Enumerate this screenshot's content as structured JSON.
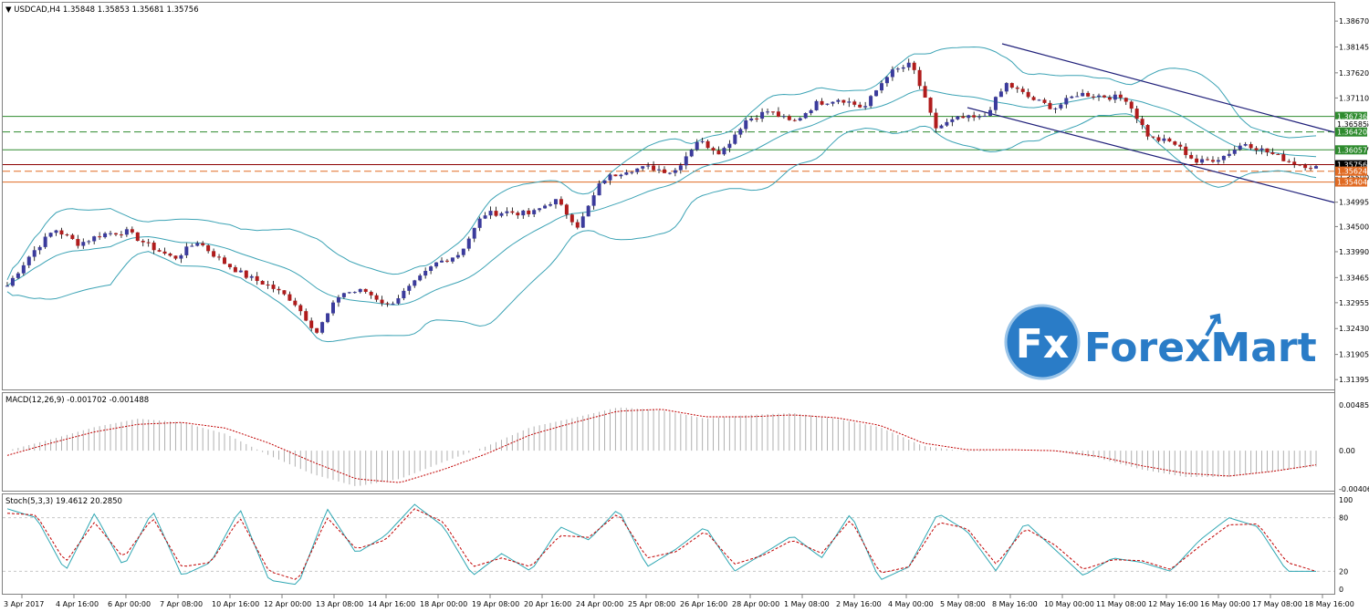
{
  "colors": {
    "up": "#3b3b9c",
    "down": "#b01c1c",
    "bands": "#3ca3b5",
    "channel": "#20207a",
    "level_green": "#2e8b2e",
    "level_orange": "#e06a22",
    "level_price": "#8c0000",
    "macd_signal": "#c00000",
    "stoch_k": "#2fa7b3",
    "stoch_d": "#c00000",
    "logo_blue": "#2a7cc7"
  },
  "watermark": {
    "logo_text": "Fx",
    "brand": "ForexMart"
  },
  "chart_data": [
    {
      "type": "candlestick",
      "title": "USDCAD,H4  1.35848 1.35853 1.35681 1.35756",
      "symbol": "USDCAD",
      "timeframe": "H4",
      "ohlc_last": [
        1.35848,
        1.35853,
        1.35681,
        1.35756
      ],
      "ylim": [
        1.3125,
        1.3895
      ],
      "y_ticks": [
        "1.38670",
        "1.38145",
        "1.37620",
        "1.37110",
        "1.36585",
        "1.36057",
        "1.35500",
        "1.34995",
        "1.34500",
        "1.33990",
        "1.33465",
        "1.32955",
        "1.32430",
        "1.31905",
        "1.31395"
      ],
      "x_ticks": [
        "3 Apr 2017",
        "4 Apr 16:00",
        "6 Apr 00:00",
        "7 Apr 08:00",
        "10 Apr 16:00",
        "12 Apr 00:00",
        "13 Apr 08:00",
        "14 Apr 16:00",
        "18 Apr 00:00",
        "19 Apr 08:00",
        "20 Apr 16:00",
        "24 Apr 00:00",
        "25 Apr 08:00",
        "26 Apr 16:00",
        "28 Apr 00:00",
        "1 May 08:00",
        "2 May 16:00",
        "4 May 00:00",
        "5 May 08:00",
        "8 May 16:00",
        "10 May 00:00",
        "11 May 08:00",
        "12 May 16:00",
        "16 May 00:00",
        "17 May 08:00",
        "18 May 16:00"
      ],
      "price_path": [
        1.333,
        1.3395,
        1.3445,
        1.3415,
        1.3435,
        1.344,
        1.341,
        1.3385,
        1.342,
        1.338,
        1.335,
        1.333,
        1.33,
        1.3235,
        1.3315,
        1.332,
        1.329,
        1.333,
        1.3375,
        1.3395,
        1.3475,
        1.348,
        1.3475,
        1.3505,
        1.345,
        1.3545,
        1.3565,
        1.357,
        1.356,
        1.3625,
        1.36,
        1.3665,
        1.3685,
        1.366,
        1.37,
        1.371,
        1.369,
        1.376,
        1.378,
        1.365,
        1.367,
        1.367,
        1.374,
        1.371,
        1.369,
        1.372,
        1.3715,
        1.371,
        1.363,
        1.362,
        1.358,
        1.359,
        1.362,
        1.36,
        1.358,
        1.357
      ],
      "levels": [
        {
          "label": "1.36736",
          "value": 1.36736,
          "style": "solid",
          "color": "green"
        },
        {
          "label": "1.36585",
          "value": 1.36585,
          "style": "none",
          "color": "price"
        },
        {
          "label": "1.36420",
          "value": 1.3642,
          "style": "dashed",
          "color": "green"
        },
        {
          "label": "1.36057",
          "value": 1.36057,
          "style": "solid",
          "color": "green"
        },
        {
          "label": "1.35756",
          "value": 1.35756,
          "style": "solid",
          "color": "price"
        },
        {
          "label": "1.35624",
          "value": 1.35624,
          "style": "dashed",
          "color": "orange"
        },
        {
          "label": "1.35404",
          "value": 1.35404,
          "style": "solid",
          "color": "orange"
        }
      ],
      "indicators": [
        "Bollinger Bands",
        "Descending channel"
      ]
    },
    {
      "type": "histogram",
      "title": "MACD(12,26,9) -0.001702 -0.001488",
      "y_ticks": [
        "0.004858",
        "0.00",
        "-0.004061"
      ],
      "ylim": [
        -0.004061,
        0.004858
      ],
      "series": [
        {
          "name": "MACD",
          "values": [
            0.0,
            0.0012,
            0.0025,
            0.0034,
            0.003,
            0.0018,
            -0.0005,
            -0.0025,
            -0.0038,
            -0.003,
            -0.0012,
            0.0005,
            0.0025,
            0.0035,
            0.0046,
            0.0043,
            0.0034,
            0.0038,
            0.004,
            0.0034,
            0.0025,
            0.0005,
            -0.0001,
            0.0,
            0.0,
            -0.0008,
            -0.002,
            -0.0028,
            -0.0028,
            -0.0022,
            -0.0017
          ]
        },
        {
          "name": "Signal",
          "values": [
            -0.0005,
            0.0008,
            0.002,
            0.0028,
            0.003,
            0.0024,
            0.0008,
            -0.0012,
            -0.003,
            -0.0034,
            -0.002,
            -0.0003,
            0.0017,
            0.003,
            0.0042,
            0.0044,
            0.0036,
            0.0036,
            0.0038,
            0.0035,
            0.0027,
            0.0008,
            0.0001,
            0.0001,
            0.0,
            -0.0006,
            -0.0016,
            -0.0024,
            -0.0027,
            -0.0022,
            -0.0015
          ]
        }
      ]
    },
    {
      "type": "line",
      "title": "Stoch(5,3,3) 19.4612 20.2850",
      "y_ticks": [
        "100",
        "80",
        "20",
        "0"
      ],
      "ylim": [
        0,
        100
      ],
      "series": [
        {
          "name": "%K",
          "values": [
            90,
            80,
            20,
            85,
            25,
            88,
            15,
            30,
            90,
            10,
            5,
            90,
            40,
            60,
            95,
            70,
            15,
            40,
            20,
            70,
            55,
            90,
            25,
            45,
            70,
            20,
            40,
            60,
            35,
            85,
            10,
            25,
            85,
            65,
            20,
            75,
            45,
            15,
            35,
            30,
            20,
            55,
            80,
            70,
            20,
            20
          ]
        },
        {
          "name": "%D",
          "values": [
            85,
            83,
            30,
            75,
            35,
            80,
            25,
            30,
            80,
            20,
            10,
            80,
            45,
            55,
            90,
            75,
            25,
            35,
            25,
            60,
            58,
            85,
            35,
            42,
            65,
            28,
            38,
            55,
            40,
            78,
            18,
            25,
            75,
            68,
            28,
            68,
            50,
            22,
            33,
            32,
            22,
            48,
            72,
            73,
            30,
            20
          ]
        }
      ]
    }
  ]
}
